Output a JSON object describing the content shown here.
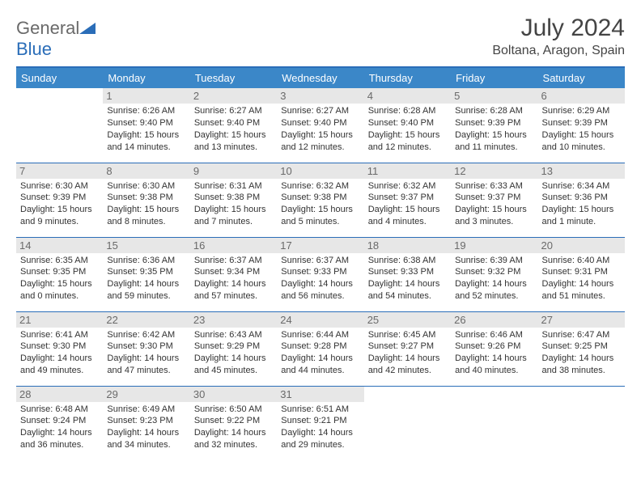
{
  "logo": {
    "part1": "General",
    "part2": "Blue",
    "text_color": "#6a6a6a",
    "accent_color": "#2a6db8"
  },
  "title": "July 2024",
  "location": "Boltana, Aragon, Spain",
  "header_bg": "#3b87c8",
  "header_text_color": "#ffffff",
  "border_color": "#2a6db8",
  "daynum_bg": "#e7e7e7",
  "cell_text_color": "#333333",
  "weekdays": [
    "Sunday",
    "Monday",
    "Tuesday",
    "Wednesday",
    "Thursday",
    "Friday",
    "Saturday"
  ],
  "weeks": [
    [
      {
        "num": "",
        "lines": []
      },
      {
        "num": "1",
        "lines": [
          "Sunrise: 6:26 AM",
          "Sunset: 9:40 PM",
          "Daylight: 15 hours",
          "and 14 minutes."
        ]
      },
      {
        "num": "2",
        "lines": [
          "Sunrise: 6:27 AM",
          "Sunset: 9:40 PM",
          "Daylight: 15 hours",
          "and 13 minutes."
        ]
      },
      {
        "num": "3",
        "lines": [
          "Sunrise: 6:27 AM",
          "Sunset: 9:40 PM",
          "Daylight: 15 hours",
          "and 12 minutes."
        ]
      },
      {
        "num": "4",
        "lines": [
          "Sunrise: 6:28 AM",
          "Sunset: 9:40 PM",
          "Daylight: 15 hours",
          "and 12 minutes."
        ]
      },
      {
        "num": "5",
        "lines": [
          "Sunrise: 6:28 AM",
          "Sunset: 9:39 PM",
          "Daylight: 15 hours",
          "and 11 minutes."
        ]
      },
      {
        "num": "6",
        "lines": [
          "Sunrise: 6:29 AM",
          "Sunset: 9:39 PM",
          "Daylight: 15 hours",
          "and 10 minutes."
        ]
      }
    ],
    [
      {
        "num": "7",
        "lines": [
          "Sunrise: 6:30 AM",
          "Sunset: 9:39 PM",
          "Daylight: 15 hours",
          "and 9 minutes."
        ]
      },
      {
        "num": "8",
        "lines": [
          "Sunrise: 6:30 AM",
          "Sunset: 9:38 PM",
          "Daylight: 15 hours",
          "and 8 minutes."
        ]
      },
      {
        "num": "9",
        "lines": [
          "Sunrise: 6:31 AM",
          "Sunset: 9:38 PM",
          "Daylight: 15 hours",
          "and 7 minutes."
        ]
      },
      {
        "num": "10",
        "lines": [
          "Sunrise: 6:32 AM",
          "Sunset: 9:38 PM",
          "Daylight: 15 hours",
          "and 5 minutes."
        ]
      },
      {
        "num": "11",
        "lines": [
          "Sunrise: 6:32 AM",
          "Sunset: 9:37 PM",
          "Daylight: 15 hours",
          "and 4 minutes."
        ]
      },
      {
        "num": "12",
        "lines": [
          "Sunrise: 6:33 AM",
          "Sunset: 9:37 PM",
          "Daylight: 15 hours",
          "and 3 minutes."
        ]
      },
      {
        "num": "13",
        "lines": [
          "Sunrise: 6:34 AM",
          "Sunset: 9:36 PM",
          "Daylight: 15 hours",
          "and 1 minute."
        ]
      }
    ],
    [
      {
        "num": "14",
        "lines": [
          "Sunrise: 6:35 AM",
          "Sunset: 9:35 PM",
          "Daylight: 15 hours",
          "and 0 minutes."
        ]
      },
      {
        "num": "15",
        "lines": [
          "Sunrise: 6:36 AM",
          "Sunset: 9:35 PM",
          "Daylight: 14 hours",
          "and 59 minutes."
        ]
      },
      {
        "num": "16",
        "lines": [
          "Sunrise: 6:37 AM",
          "Sunset: 9:34 PM",
          "Daylight: 14 hours",
          "and 57 minutes."
        ]
      },
      {
        "num": "17",
        "lines": [
          "Sunrise: 6:37 AM",
          "Sunset: 9:33 PM",
          "Daylight: 14 hours",
          "and 56 minutes."
        ]
      },
      {
        "num": "18",
        "lines": [
          "Sunrise: 6:38 AM",
          "Sunset: 9:33 PM",
          "Daylight: 14 hours",
          "and 54 minutes."
        ]
      },
      {
        "num": "19",
        "lines": [
          "Sunrise: 6:39 AM",
          "Sunset: 9:32 PM",
          "Daylight: 14 hours",
          "and 52 minutes."
        ]
      },
      {
        "num": "20",
        "lines": [
          "Sunrise: 6:40 AM",
          "Sunset: 9:31 PM",
          "Daylight: 14 hours",
          "and 51 minutes."
        ]
      }
    ],
    [
      {
        "num": "21",
        "lines": [
          "Sunrise: 6:41 AM",
          "Sunset: 9:30 PM",
          "Daylight: 14 hours",
          "and 49 minutes."
        ]
      },
      {
        "num": "22",
        "lines": [
          "Sunrise: 6:42 AM",
          "Sunset: 9:30 PM",
          "Daylight: 14 hours",
          "and 47 minutes."
        ]
      },
      {
        "num": "23",
        "lines": [
          "Sunrise: 6:43 AM",
          "Sunset: 9:29 PM",
          "Daylight: 14 hours",
          "and 45 minutes."
        ]
      },
      {
        "num": "24",
        "lines": [
          "Sunrise: 6:44 AM",
          "Sunset: 9:28 PM",
          "Daylight: 14 hours",
          "and 44 minutes."
        ]
      },
      {
        "num": "25",
        "lines": [
          "Sunrise: 6:45 AM",
          "Sunset: 9:27 PM",
          "Daylight: 14 hours",
          "and 42 minutes."
        ]
      },
      {
        "num": "26",
        "lines": [
          "Sunrise: 6:46 AM",
          "Sunset: 9:26 PM",
          "Daylight: 14 hours",
          "and 40 minutes."
        ]
      },
      {
        "num": "27",
        "lines": [
          "Sunrise: 6:47 AM",
          "Sunset: 9:25 PM",
          "Daylight: 14 hours",
          "and 38 minutes."
        ]
      }
    ],
    [
      {
        "num": "28",
        "lines": [
          "Sunrise: 6:48 AM",
          "Sunset: 9:24 PM",
          "Daylight: 14 hours",
          "and 36 minutes."
        ]
      },
      {
        "num": "29",
        "lines": [
          "Sunrise: 6:49 AM",
          "Sunset: 9:23 PM",
          "Daylight: 14 hours",
          "and 34 minutes."
        ]
      },
      {
        "num": "30",
        "lines": [
          "Sunrise: 6:50 AM",
          "Sunset: 9:22 PM",
          "Daylight: 14 hours",
          "and 32 minutes."
        ]
      },
      {
        "num": "31",
        "lines": [
          "Sunrise: 6:51 AM",
          "Sunset: 9:21 PM",
          "Daylight: 14 hours",
          "and 29 minutes."
        ]
      },
      {
        "num": "",
        "lines": []
      },
      {
        "num": "",
        "lines": []
      },
      {
        "num": "",
        "lines": []
      }
    ]
  ]
}
